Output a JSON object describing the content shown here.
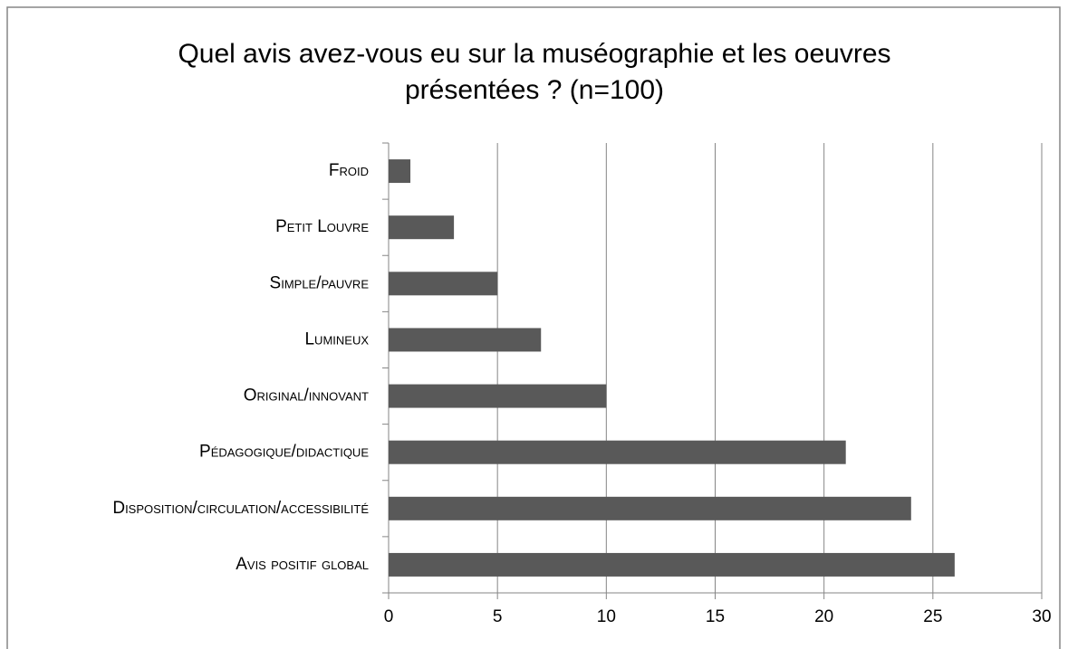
{
  "chart_data": {
    "type": "bar",
    "orientation": "horizontal",
    "title": "Quel avis avez-vous eu sur la muséographie et les oeuvres présentées ? (n=100)",
    "categories": [
      "Froid",
      "Petit Louvre",
      "Simple/pauvre",
      "Lumineux",
      "Original/innovant",
      "Pédagogique/didactique",
      "Disposition/circulation/accessibilité",
      "Avis positif global"
    ],
    "values": [
      1,
      3,
      5,
      7,
      10,
      21,
      24,
      26
    ],
    "color": "#595959",
    "xlim": [
      0,
      30
    ],
    "xticks": [
      0,
      5,
      10,
      15,
      20,
      25,
      30
    ],
    "grid": true
  }
}
